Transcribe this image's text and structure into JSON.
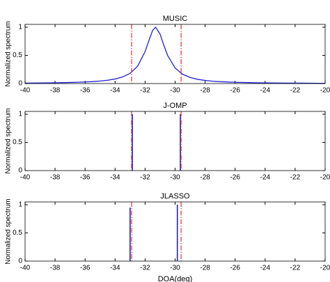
{
  "chart_data": [
    {
      "type": "line",
      "title": "MUSIC",
      "ylabel": "Normalized spectrum",
      "xlim": [
        -40,
        -20
      ],
      "xticks": [
        -40,
        -38,
        -36,
        -34,
        -32,
        -30,
        -28,
        -26,
        -24,
        -22,
        -20
      ],
      "ylim": [
        0,
        1.05
      ],
      "yticks": [
        0,
        0.5,
        1
      ],
      "vlines": {
        "x": [
          -32.9,
          -29.6
        ],
        "color": "#e03030"
      },
      "series": [
        {
          "color": "#1f1fd0",
          "x": [
            -40,
            -39.5,
            -39,
            -38.5,
            -38,
            -37.5,
            -37,
            -36.5,
            -36,
            -35.5,
            -35,
            -34.5,
            -34,
            -33.5,
            -33,
            -32.5,
            -32,
            -31.75,
            -31.5,
            -31.3,
            -31,
            -30.75,
            -30.5,
            -30,
            -29.5,
            -29,
            -28.5,
            -28,
            -27.5,
            -27,
            -26.5,
            -26,
            -25.5,
            -25,
            -24.5,
            -24,
            -23.5,
            -23,
            -22.5,
            -22,
            -21.5,
            -21,
            -20.5,
            -20
          ],
          "values": [
            0.008,
            0.009,
            0.011,
            0.012,
            0.014,
            0.016,
            0.019,
            0.023,
            0.028,
            0.035,
            0.045,
            0.059,
            0.081,
            0.117,
            0.181,
            0.308,
            0.566,
            0.76,
            0.941,
            1,
            0.877,
            0.679,
            0.5,
            0.275,
            0.165,
            0.108,
            0.075,
            0.056,
            0.042,
            0.033,
            0.027,
            0.022,
            0.019,
            0.016,
            0.014,
            0.012,
            0.01,
            0.009,
            0.008,
            0.007,
            0.007,
            0.006,
            0.005,
            0.005
          ]
        }
      ]
    },
    {
      "type": "stem",
      "title": "J-OMP",
      "ylabel": "Normalized spectrum",
      "xlim": [
        -40,
        -20
      ],
      "xticks": [
        -40,
        -38,
        -36,
        -34,
        -32,
        -30,
        -28,
        -26,
        -24,
        -22,
        -20
      ],
      "ylim": [
        0,
        1.05
      ],
      "yticks": [
        0,
        0.5,
        1
      ],
      "vlines": {
        "x": [
          -32.9,
          -29.6
        ],
        "color": "#e03030"
      },
      "series": [
        {
          "color": "#1f1fd0",
          "x": [
            -32.85,
            -29.65
          ],
          "values": [
            1,
            1
          ]
        }
      ]
    },
    {
      "type": "stem",
      "title": "JLASSO",
      "ylabel": "Normalized spectrum",
      "xlabel": "DOA(deg)",
      "xlim": [
        -40,
        -20
      ],
      "xticks": [
        -40,
        -38,
        -36,
        -34,
        -32,
        -30,
        -28,
        -26,
        -24,
        -22,
        -20
      ],
      "ylim": [
        0,
        1.05
      ],
      "yticks": [
        0,
        0.5,
        1
      ],
      "vlines": {
        "x": [
          -32.9,
          -29.6
        ],
        "color": "#e03030"
      },
      "series": [
        {
          "color": "#1f1fd0",
          "x": [
            -33.0,
            -29.85
          ],
          "values": [
            0.95,
            1
          ]
        }
      ]
    }
  ]
}
